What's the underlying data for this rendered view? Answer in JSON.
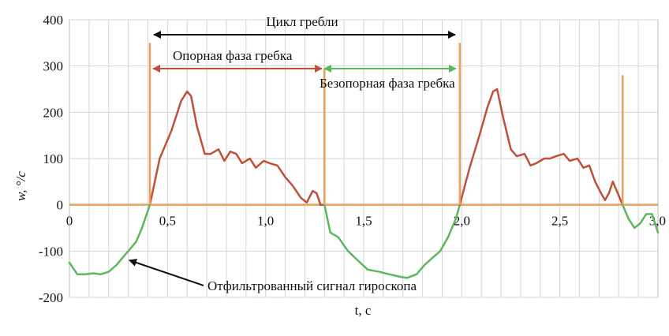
{
  "chart_data": {
    "type": "line",
    "title": "",
    "xlabel": "t, с",
    "ylabel": "w, °/с",
    "xlim": [
      0,
      3.0
    ],
    "ylim": [
      -200,
      400
    ],
    "grid": true,
    "x_ticks": [
      0,
      0.5,
      1.0,
      1.5,
      2.0,
      2.5,
      3.0
    ],
    "x_tick_labels": [
      "0",
      "0,5",
      "1,0",
      "1,5",
      "2,0",
      "2,5",
      "3,0"
    ],
    "y_ticks": [
      -200,
      -100,
      0,
      100,
      200,
      300,
      400
    ],
    "y_tick_labels": [
      "-200",
      "-100",
      "0",
      "100",
      "200",
      "300",
      "400"
    ],
    "colors": {
      "support_phase": "#c0503a",
      "nonsupport_phase": "#5cb85c",
      "markers": "#e8a05a",
      "zero_line": "#e8a05a",
      "cycle_arrow": "#111111",
      "grid": "#d6d6d6"
    },
    "series": [
      {
        "role": "support_phase_1",
        "x": [
          0.41,
          0.46,
          0.52,
          0.57,
          0.6,
          0.62,
          0.65,
          0.69,
          0.72,
          0.76,
          0.79,
          0.82,
          0.85,
          0.88,
          0.92,
          0.95,
          0.99,
          1.02,
          1.06,
          1.1,
          1.14,
          1.18,
          1.21,
          1.24,
          1.26,
          1.28,
          1.3
        ],
        "y": [
          0,
          100,
          160,
          225,
          245,
          235,
          170,
          110,
          110,
          120,
          95,
          115,
          110,
          90,
          100,
          80,
          95,
          90,
          85,
          60,
          40,
          15,
          5,
          30,
          25,
          0,
          0
        ]
      },
      {
        "role": "nonsupport_phase_1",
        "x": [
          1.3,
          1.33,
          1.37,
          1.42,
          1.47,
          1.52,
          1.58,
          1.63,
          1.68,
          1.72,
          1.77,
          1.81,
          1.85,
          1.89,
          1.93,
          1.97,
          1.99
        ],
        "y": [
          0,
          -60,
          -70,
          -100,
          -120,
          -140,
          -145,
          -150,
          -155,
          -158,
          -150,
          -130,
          -115,
          -100,
          -70,
          -30,
          0
        ]
      },
      {
        "role": "support_phase_2",
        "x": [
          1.99,
          2.04,
          2.09,
          2.13,
          2.16,
          2.18,
          2.21,
          2.25,
          2.28,
          2.32,
          2.35,
          2.38,
          2.42,
          2.45,
          2.48,
          2.52,
          2.55,
          2.59,
          2.62,
          2.65,
          2.68,
          2.71,
          2.73,
          2.75,
          2.77,
          2.79,
          2.82
        ],
        "y": [
          0,
          80,
          150,
          210,
          245,
          250,
          190,
          120,
          105,
          110,
          85,
          90,
          100,
          100,
          105,
          110,
          95,
          100,
          80,
          85,
          50,
          25,
          10,
          25,
          50,
          30,
          0
        ]
      },
      {
        "role": "nonsupport_phase_2",
        "x": [
          2.82,
          2.85,
          2.88,
          2.91,
          2.94,
          2.97,
          3.0
        ],
        "y": [
          0,
          -30,
          -50,
          -40,
          -20,
          -20,
          -60
        ]
      },
      {
        "role": "filtered_start",
        "x": [
          0,
          0.04,
          0.08,
          0.12,
          0.16,
          0.2,
          0.24,
          0.27,
          0.3,
          0.34,
          0.37,
          0.39,
          0.41
        ],
        "y": [
          -125,
          -150,
          -150,
          -148,
          -150,
          -145,
          -130,
          -115,
          -100,
          -80,
          -50,
          -25,
          0
        ]
      }
    ],
    "markers": [
      {
        "x": 0.41,
        "top": 350
      },
      {
        "x": 1.3,
        "top": 0
      },
      {
        "x": 1.99,
        "top": 350
      },
      {
        "x": 2.82,
        "top": 280
      }
    ],
    "annotations": {
      "cycle": "Цикл гребли",
      "support": "Опорная фаза гребка",
      "nonsupport": "Безопорная фаза гребка",
      "gyro": "Отфильтрованный сигнал гироскопа"
    }
  }
}
